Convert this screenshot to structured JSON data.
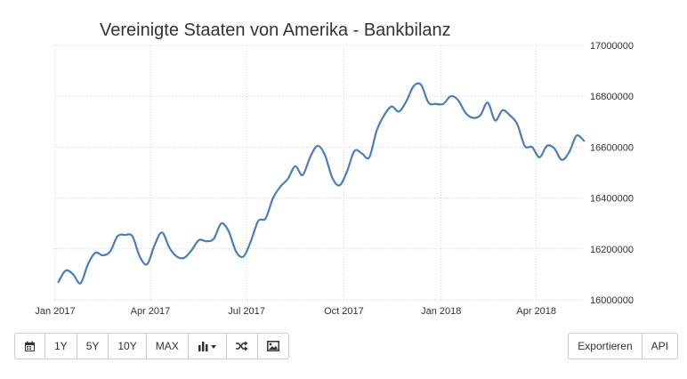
{
  "chart_data": {
    "type": "line",
    "title": "Vereinigte Staaten von Amerika - Bankbilanz",
    "xlabel": "",
    "ylabel": "",
    "x_tick_labels": [
      "Jan 2017",
      "Apr 2017",
      "Jul 2017",
      "Oct 2017",
      "Jan 2018",
      "Apr 2018"
    ],
    "y_tick_labels": [
      "16000000",
      "16200000",
      "16400000",
      "16600000",
      "16800000",
      "17000000"
    ],
    "ylim": [
      16000000,
      17000000
    ],
    "xlim": [
      "2017-01-01",
      "2018-05-15"
    ],
    "grid": true,
    "y_axis_position": "right",
    "line_color": "#4a7ebb",
    "series": [
      {
        "x": [
          "2017-01-04",
          "2017-01-11",
          "2017-01-18",
          "2017-01-25",
          "2017-02-01",
          "2017-02-08",
          "2017-02-15",
          "2017-02-22",
          "2017-03-01",
          "2017-03-08",
          "2017-03-15",
          "2017-03-22",
          "2017-03-29",
          "2017-04-05",
          "2017-04-12",
          "2017-04-19",
          "2017-04-26",
          "2017-05-03",
          "2017-05-10",
          "2017-05-17",
          "2017-05-24",
          "2017-05-31",
          "2017-06-07",
          "2017-06-14",
          "2017-06-21",
          "2017-06-28",
          "2017-07-05",
          "2017-07-12",
          "2017-07-19",
          "2017-07-26",
          "2017-08-02",
          "2017-08-09",
          "2017-08-16",
          "2017-08-23",
          "2017-08-30",
          "2017-09-06",
          "2017-09-13",
          "2017-09-20",
          "2017-09-27",
          "2017-10-04",
          "2017-10-11",
          "2017-10-18",
          "2017-10-25",
          "2017-11-01",
          "2017-11-08",
          "2017-11-15",
          "2017-11-22",
          "2017-11-29",
          "2017-12-06",
          "2017-12-13",
          "2017-12-20",
          "2017-12-27",
          "2018-01-03",
          "2018-01-10",
          "2018-01-17",
          "2018-01-24",
          "2018-01-31",
          "2018-02-07",
          "2018-02-14",
          "2018-02-21",
          "2018-02-28",
          "2018-03-07",
          "2018-03-14",
          "2018-03-21",
          "2018-03-28",
          "2018-04-04",
          "2018-04-11",
          "2018-04-18",
          "2018-04-25",
          "2018-05-02",
          "2018-05-09",
          "2018-05-16"
        ],
        "y": [
          16070000,
          16115000,
          16100000,
          16065000,
          16140000,
          16185000,
          16175000,
          16190000,
          16250000,
          16255000,
          16250000,
          16170000,
          16140000,
          16215000,
          16265000,
          16205000,
          16170000,
          16165000,
          16195000,
          16235000,
          16230000,
          16240000,
          16300000,
          16270000,
          16190000,
          16170000,
          16230000,
          16310000,
          16320000,
          16400000,
          16445000,
          16475000,
          16525000,
          16490000,
          16560000,
          16605000,
          16570000,
          16480000,
          16450000,
          16505000,
          16585000,
          16575000,
          16560000,
          16665000,
          16725000,
          16760000,
          16740000,
          16780000,
          16840000,
          16845000,
          16775000,
          16770000,
          16770000,
          16800000,
          16785000,
          16735000,
          16715000,
          16725000,
          16775000,
          16705000,
          16745000,
          16725000,
          16690000,
          16605000,
          16600000,
          16560000,
          16605000,
          16595000,
          16550000,
          16580000,
          16645000,
          16625000
        ]
      }
    ]
  },
  "toolbar": {
    "calendar_icon": "calendar-icon",
    "range_1y": "1Y",
    "range_5y": "5Y",
    "range_10y": "10Y",
    "range_max": "MAX",
    "chart_type_icon": "bar-chart-dropdown-icon",
    "compare_icon": "shuffle-icon",
    "image_icon": "image-icon",
    "export_label": "Exportieren",
    "api_label": "API"
  }
}
